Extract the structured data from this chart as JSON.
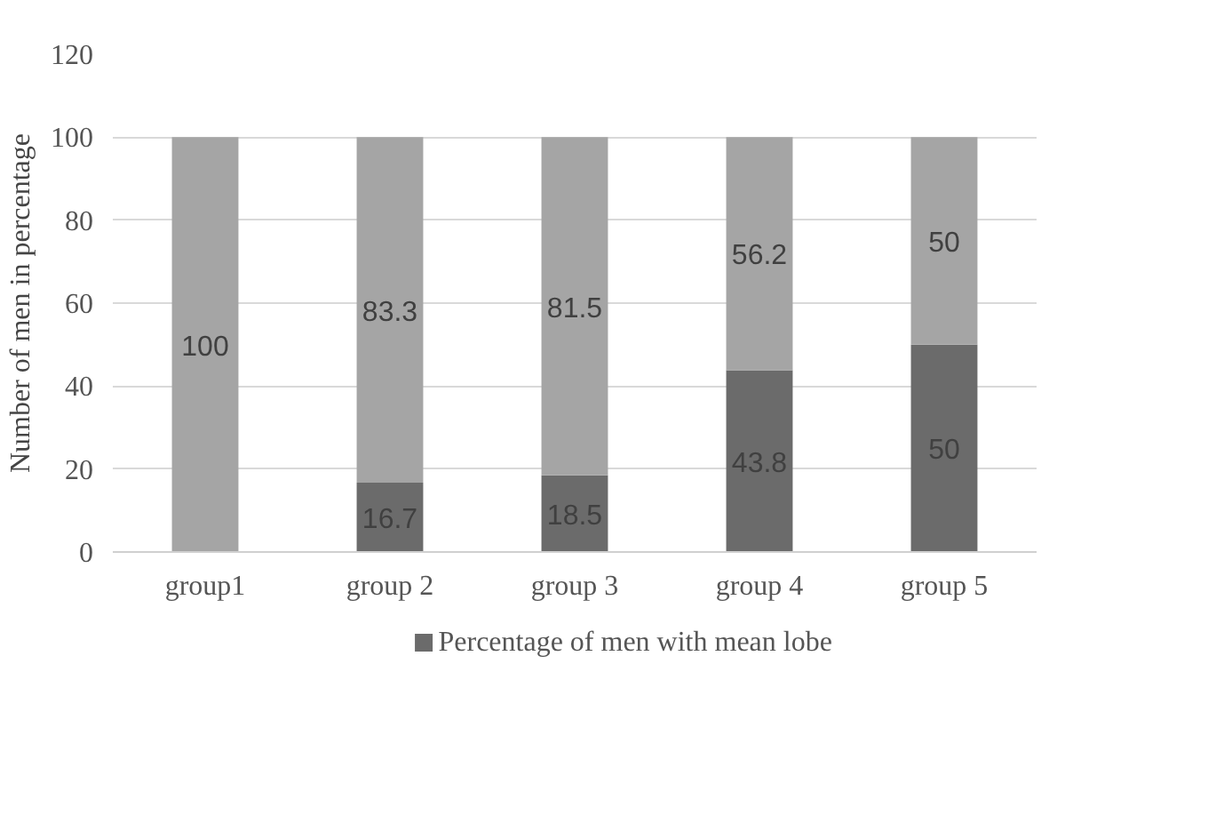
{
  "chart_data": {
    "type": "bar",
    "stacked": true,
    "ylabel": "Number of men in percentage",
    "categories": [
      "group1",
      "group 2",
      "group 3",
      "group 4",
      "group 5"
    ],
    "series": [
      {
        "name": "Percentage of men with mean lobe",
        "color": "#6b6b6b",
        "values": [
          0,
          16.7,
          18.5,
          43.8,
          50
        ],
        "value_labels": [
          null,
          "16.7",
          "18.5",
          "43.8",
          "50"
        ]
      },
      {
        "color": "#a5a5a5",
        "values": [
          100,
          83.3,
          81.5,
          56.2,
          50
        ],
        "value_labels": [
          "100",
          "83.3",
          "81.5",
          "56.2",
          "50"
        ]
      }
    ],
    "ylim": [
      0,
      120
    ],
    "yticks": [
      0,
      20,
      40,
      60,
      80,
      100,
      120
    ],
    "grid": "y",
    "legend": "bottom"
  }
}
